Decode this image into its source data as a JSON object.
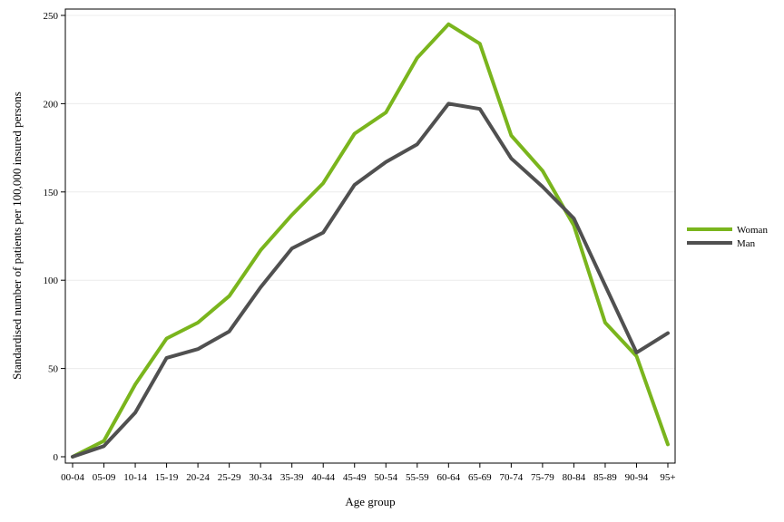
{
  "chart_data": {
    "type": "line",
    "xlabel": "Age group",
    "ylabel": "Standardised number of patients per 100,000 insured persons",
    "categories": [
      "00-04",
      "05-09",
      "10-14",
      "15-19",
      "20-24",
      "25-29",
      "30-34",
      "35-39",
      "40-44",
      "45-49",
      "50-54",
      "55-59",
      "60-64",
      "65-69",
      "70-74",
      "75-79",
      "80-84",
      "85-89",
      "90-94",
      "95+"
    ],
    "ylim": [
      0,
      250
    ],
    "yticks": [
      0,
      50,
      100,
      150,
      200,
      250
    ],
    "grid": "horizontal",
    "legend_position": "right",
    "series": [
      {
        "name": "Woman",
        "color": "#7ab51d",
        "values": [
          0,
          9,
          41,
          67,
          76,
          91,
          117,
          137,
          155,
          183,
          195,
          226,
          245,
          234,
          182,
          162,
          131,
          76,
          57,
          7
        ]
      },
      {
        "name": "Man",
        "color": "#505050",
        "values": [
          0,
          6,
          25,
          56,
          61,
          71,
          96,
          118,
          127,
          154,
          167,
          177,
          200,
          197,
          169,
          153,
          135,
          97,
          59,
          70
        ]
      }
    ]
  }
}
